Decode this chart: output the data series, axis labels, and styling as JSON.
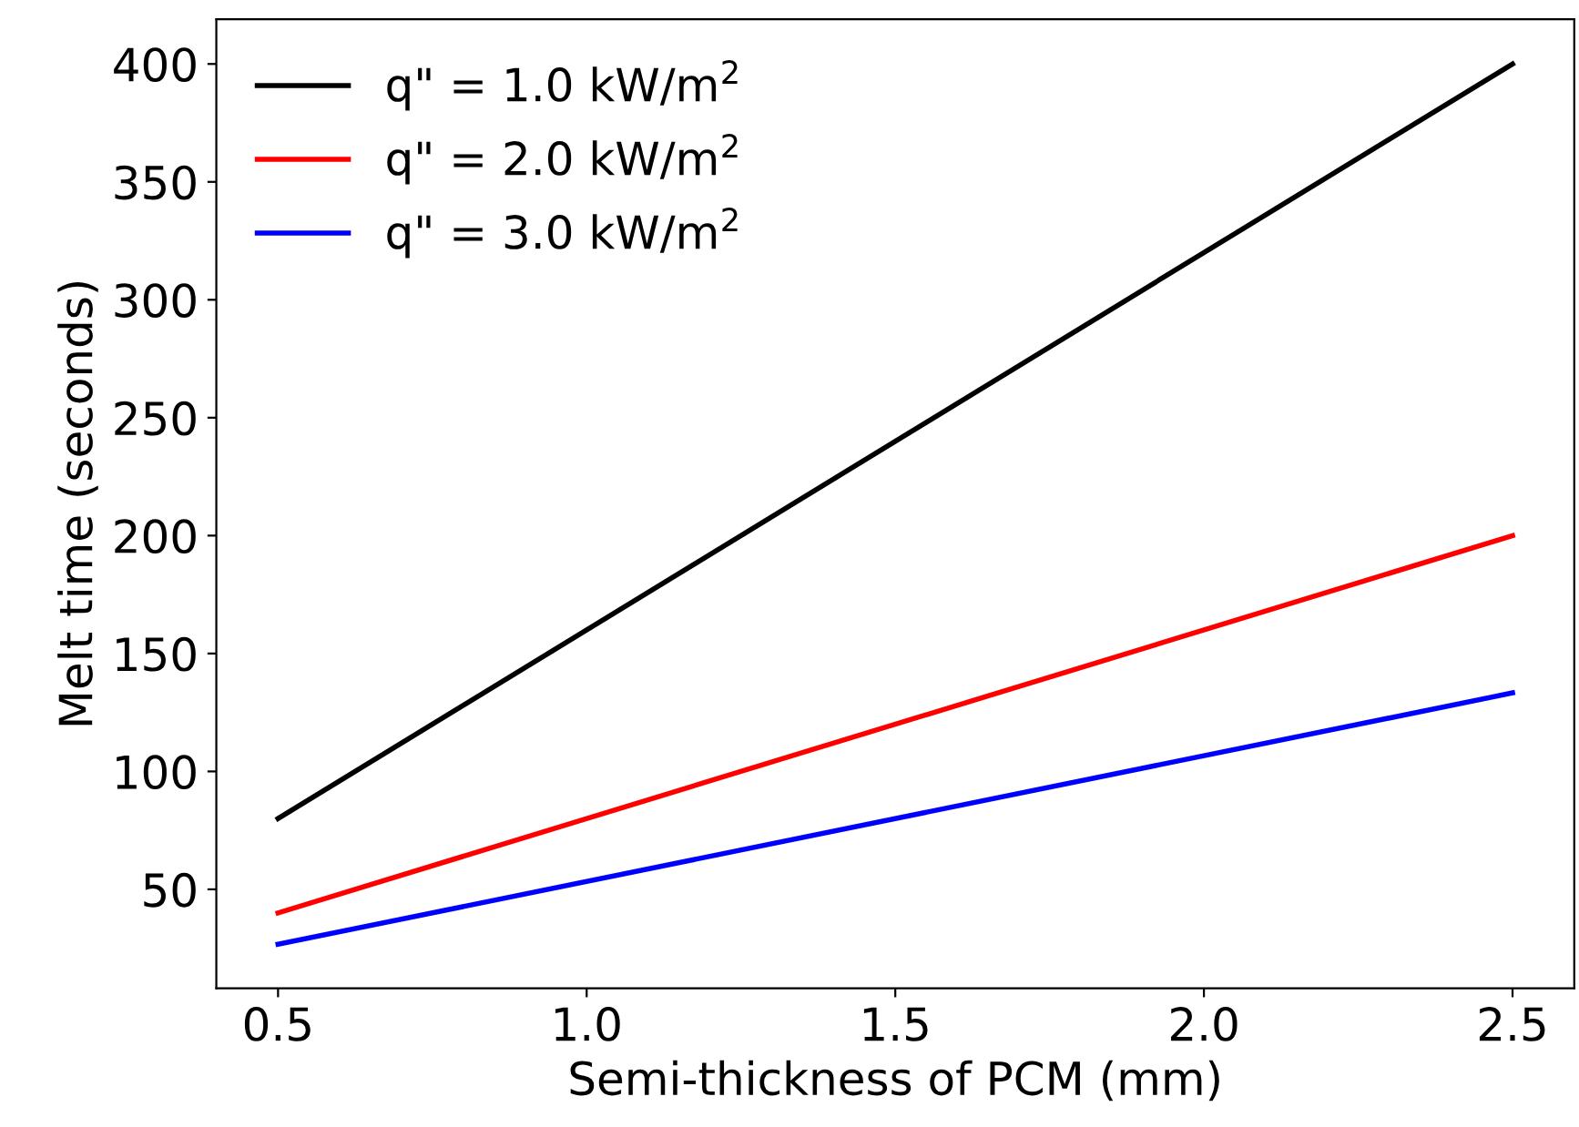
{
  "chart_data": {
    "type": "line",
    "xlabel": "Semi-thickness of PCM (mm)",
    "ylabel": "Melt time (seconds)",
    "xlim": [
      0.4,
      2.6
    ],
    "xticks": [
      {
        "value": 0.5,
        "label": "0.5"
      },
      {
        "value": 1.0,
        "label": "1.0"
      },
      {
        "value": 1.5,
        "label": "1.5"
      },
      {
        "value": 2.0,
        "label": "2.0"
      },
      {
        "value": 2.5,
        "label": "2.5"
      }
    ],
    "ylim": [
      8,
      419
    ],
    "yticks": [
      50,
      100,
      150,
      200,
      250,
      300,
      350,
      400
    ],
    "x": [
      0.5,
      2.5
    ],
    "series": [
      {
        "name": "q\" = 1.0 kW/m$^{2}$",
        "color": "#000000",
        "values": [
          80,
          400
        ]
      },
      {
        "name": "q\" = 2.0 kW/m$^{2}$",
        "color": "#ff0000",
        "values": [
          40,
          200
        ]
      },
      {
        "name": "q\" = 3.0 kW/m$^{2}$",
        "color": "#0000ff",
        "values": [
          26.7,
          133.3
        ]
      }
    ],
    "legend": "top left",
    "grid": false,
    "marker": "none",
    "line_style": "solid"
  }
}
